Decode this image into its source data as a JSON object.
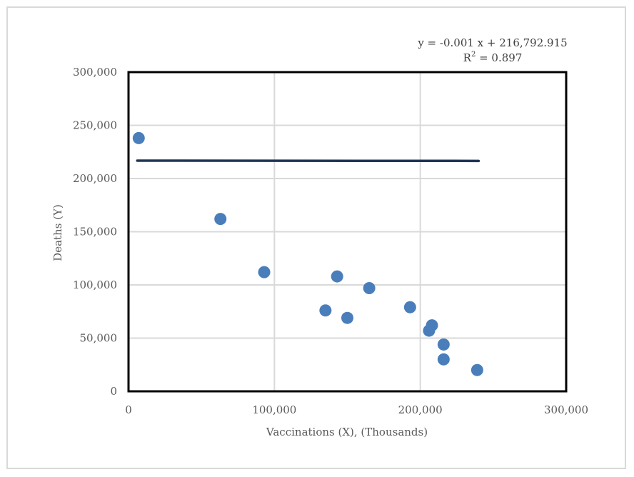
{
  "chart_data": {
    "type": "scatter",
    "xlabel": "Vaccinations (X), (Thousands)",
    "ylabel": "Deaths (Y)",
    "xlim": [
      0,
      300000
    ],
    "ylim": [
      0,
      300000
    ],
    "x_ticks": [
      0,
      100000,
      200000,
      300000
    ],
    "y_ticks": [
      0,
      50000,
      100000,
      150000,
      200000,
      250000,
      300000
    ],
    "x_tick_labels": [
      "0",
      "100,000",
      "200,000",
      "300,000"
    ],
    "y_tick_labels": [
      "0",
      "50,000",
      "100,000",
      "150,000",
      "200,000",
      "250,000",
      "300,000"
    ],
    "grid": true,
    "legend": "none",
    "colors": {
      "points": "#4a7ebb",
      "trendline": "#1f3654",
      "grid": "#d9d9d9",
      "plot_border": "#000000"
    },
    "series": [
      {
        "points": [
          {
            "x": 7000,
            "y": 238000
          },
          {
            "x": 63000,
            "y": 162000
          },
          {
            "x": 93000,
            "y": 112000
          },
          {
            "x": 135000,
            "y": 76000
          },
          {
            "x": 143000,
            "y": 108000
          },
          {
            "x": 150000,
            "y": 69000
          },
          {
            "x": 165000,
            "y": 97000
          },
          {
            "x": 193000,
            "y": 79000
          },
          {
            "x": 206000,
            "y": 57000
          },
          {
            "x": 208000,
            "y": 62000
          },
          {
            "x": 216000,
            "y": 44000
          },
          {
            "x": 216000,
            "y": 30000
          },
          {
            "x": 239000,
            "y": 20000
          }
        ]
      }
    ],
    "trendline": {
      "x_range": [
        6000,
        240000
      ],
      "slope": -0.001,
      "intercept": 216792.915,
      "equation_label": "y = -0.001 x + 216,792.915",
      "r2_label_prefix": "R",
      "r2_label_sup": "2",
      "r2_label_suffix": " = 0.897"
    }
  }
}
